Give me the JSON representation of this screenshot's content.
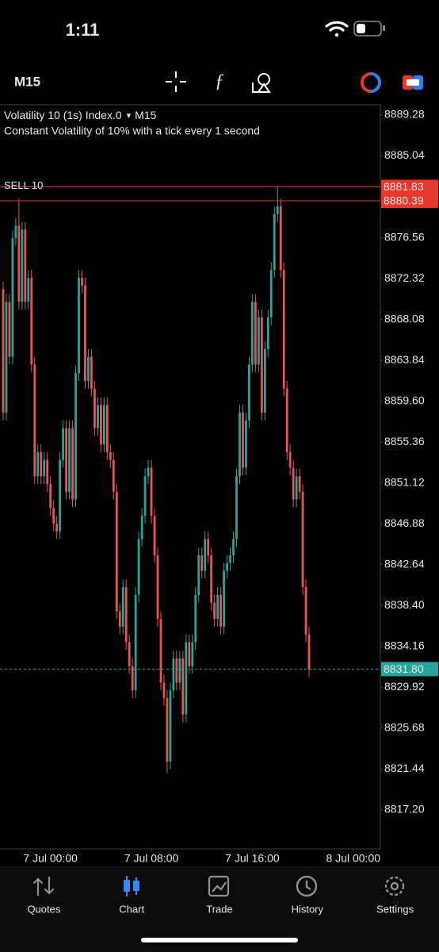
{
  "status_bar": {
    "time": "1:11"
  },
  "toolbar": {
    "timeframe": "M15"
  },
  "chart_data": {
    "type": "candlestick",
    "title": "Volatility 10 (1s) Index.0",
    "title_marker": "▾",
    "timeframe": "M15",
    "subtitle": "Constant Volatility of 10% with a tick every 1 second",
    "up_color": "#26a69a",
    "down_color": "#ef5350",
    "open": [
      8871.2,
      8858.4,
      8869.9,
      8864.2,
      8876.5,
      8877.8,
      8869.9,
      8877.4,
      8869.9,
      8872.4,
      8863.4,
      8851.8,
      8854.3,
      8851.8,
      8853.5,
      8851.0,
      8848.5,
      8846.9,
      8846.1,
      8853.5,
      8856.8,
      8850.2,
      8856.8,
      8849.4,
      8862.5,
      8872.4,
      8871.6,
      8861.7,
      8864.2,
      8860.9,
      8856.8,
      8859.2,
      8855.1,
      8859.2,
      8854.3,
      8853.5,
      8850.2,
      8837.8,
      8836.2,
      8840.3,
      8834.6,
      8832.1,
      8829.6,
      8839.5,
      8845.3,
      8847.7,
      8851.8,
      8852.7,
      8847.7,
      8843.6,
      8837.0,
      8830.4,
      8828.8,
      8822.2,
      8829.6,
      8832.9,
      8830.4,
      8832.9,
      8827.1,
      8834.6,
      8832.1,
      8834.6,
      8839.5,
      8843.6,
      8842.0,
      8845.3,
      8843.6,
      8838.7,
      8837.0,
      8839.5,
      8836.2,
      8842.0,
      8842.8,
      8843.6,
      8845.3,
      8851.8,
      8858.4,
      8852.7,
      8857.6,
      8863.4,
      8869.9,
      8863.4,
      8868.3,
      8858.4,
      8865.0,
      8868.3,
      8873.2,
      8879.0,
      8879.8,
      8873.2,
      8860.9,
      8854.3,
      8852.7,
      8849.4,
      8851.8,
      8850.2,
      8840.3,
      8835.4
    ],
    "high": [
      8872.0,
      8870.7,
      8870.7,
      8877.3,
      8878.6,
      8880.6,
      8878.2,
      8878.2,
      8873.2,
      8873.2,
      8864.2,
      8855.1,
      8855.1,
      8854.3,
      8854.3,
      8851.8,
      8849.3,
      8847.7,
      8854.3,
      8857.6,
      8857.6,
      8857.6,
      8857.6,
      8863.3,
      8873.2,
      8873.2,
      8872.4,
      8865.0,
      8865.0,
      8861.7,
      8860.0,
      8860.0,
      8860.0,
      8860.0,
      8855.1,
      8854.3,
      8851.0,
      8838.6,
      8841.1,
      8841.1,
      8835.4,
      8832.9,
      8840.3,
      8846.1,
      8848.5,
      8852.6,
      8853.5,
      8853.5,
      8848.5,
      8844.4,
      8837.8,
      8831.2,
      8829.6,
      8830.4,
      8833.7,
      8833.7,
      8833.7,
      8833.7,
      8835.4,
      8835.4,
      8835.4,
      8840.3,
      8844.4,
      8844.4,
      8846.1,
      8846.1,
      8844.4,
      8839.5,
      8840.3,
      8840.3,
      8842.8,
      8843.6,
      8844.4,
      8846.1,
      8852.6,
      8859.2,
      8859.2,
      8858.4,
      8864.2,
      8870.7,
      8870.7,
      8869.1,
      8869.1,
      8865.8,
      8869.1,
      8874.0,
      8879.8,
      8881.9,
      8880.6,
      8874.0,
      8861.7,
      8855.1,
      8853.5,
      8852.6,
      8852.6,
      8851.0,
      8841.1,
      8836.2
    ],
    "low": [
      8857.6,
      8857.6,
      8863.4,
      8863.4,
      8875.7,
      8869.1,
      8869.1,
      8869.1,
      8869.1,
      8862.6,
      8851.0,
      8851.0,
      8851.0,
      8851.0,
      8850.2,
      8847.7,
      8846.1,
      8845.3,
      8845.3,
      8852.7,
      8849.4,
      8849.4,
      8848.6,
      8848.6,
      8861.7,
      8870.8,
      8860.9,
      8860.9,
      8860.1,
      8856.0,
      8856.0,
      8854.3,
      8854.3,
      8853.5,
      8852.7,
      8849.4,
      8837.0,
      8835.4,
      8835.4,
      8833.8,
      8831.3,
      8828.8,
      8828.8,
      8838.7,
      8844.5,
      8846.9,
      8851.0,
      8846.9,
      8842.8,
      8836.2,
      8829.6,
      8828.0,
      8821.0,
      8821.4,
      8828.8,
      8829.6,
      8829.6,
      8826.3,
      8826.3,
      8831.3,
      8831.3,
      8833.8,
      8838.7,
      8841.2,
      8841.2,
      8842.8,
      8837.9,
      8836.2,
      8836.2,
      8835.4,
      8835.4,
      8841.2,
      8842.0,
      8842.8,
      8844.5,
      8851.0,
      8851.9,
      8851.9,
      8856.8,
      8862.6,
      8862.6,
      8862.6,
      8857.6,
      8857.6,
      8864.2,
      8867.5,
      8872.4,
      8878.2,
      8872.4,
      8860.1,
      8853.5,
      8851.9,
      8848.6,
      8848.6,
      8849.4,
      8839.5,
      8834.6,
      8831.0
    ],
    "close": [
      8858.4,
      8869.9,
      8864.2,
      8876.5,
      8877.8,
      8869.9,
      8877.4,
      8869.9,
      8872.4,
      8863.4,
      8851.8,
      8854.3,
      8851.8,
      8853.5,
      8851.0,
      8848.5,
      8846.9,
      8846.1,
      8853.5,
      8856.8,
      8850.2,
      8856.8,
      8849.4,
      8862.5,
      8872.4,
      8871.6,
      8861.7,
      8864.2,
      8860.9,
      8856.8,
      8859.2,
      8855.1,
      8859.2,
      8854.3,
      8853.5,
      8850.2,
      8837.8,
      8836.2,
      8840.3,
      8834.6,
      8832.1,
      8829.6,
      8839.5,
      8845.3,
      8847.7,
      8851.8,
      8852.7,
      8847.7,
      8843.6,
      8837.0,
      8830.4,
      8828.8,
      8822.2,
      8829.6,
      8832.9,
      8830.4,
      8832.9,
      8827.1,
      8834.6,
      8832.1,
      8834.6,
      8839.5,
      8843.6,
      8842.0,
      8845.3,
      8843.6,
      8838.7,
      8837.0,
      8839.5,
      8836.2,
      8842.0,
      8842.8,
      8843.6,
      8845.3,
      8851.8,
      8858.4,
      8852.7,
      8857.6,
      8863.4,
      8869.9,
      8863.4,
      8868.3,
      8858.4,
      8865.0,
      8868.3,
      8873.2,
      8879.0,
      8879.8,
      8873.2,
      8860.9,
      8854.3,
      8852.7,
      8849.4,
      8851.8,
      8850.2,
      8840.3,
      8835.4,
      8831.8
    ],
    "xlim": [
      -1,
      119.6
    ],
    "xticks": [
      {
        "value": 15,
        "label": "7 Jul 00:00"
      },
      {
        "value": 47,
        "label": "7 Jul 08:00"
      },
      {
        "value": 79,
        "label": "7 Jul 16:00"
      },
      {
        "value": 111,
        "label": "8 Jul 00:00"
      }
    ],
    "ylim": [
      8813.15,
      8890.27
    ],
    "yticks": [
      8889.28,
      8885.04,
      8876.56,
      8872.32,
      8868.08,
      8863.84,
      {
        "value": 8859.6,
        "label": "8859.60"
      },
      8855.36,
      8851.12,
      8846.88,
      8842.64,
      {
        "value": 8838.4,
        "label": "8838.40"
      },
      8834.16,
      8829.92,
      8825.68,
      8821.44,
      {
        "value": 8817.2,
        "label": "8817.20"
      }
    ],
    "price_lines": [
      {
        "name": "SELL 10",
        "value": 8881.83,
        "color": "#e8372c",
        "style": "solid"
      },
      {
        "value": 8880.39,
        "color": "#e8372c",
        "style": "solid"
      },
      {
        "value": 8831.8,
        "value_label": "8831.80",
        "color": "#26a69a",
        "style": "dashed"
      }
    ]
  },
  "tab_bar": {
    "tabs": [
      "Quotes",
      "Chart",
      "Trade",
      "History",
      "Settings"
    ],
    "active": 1
  }
}
